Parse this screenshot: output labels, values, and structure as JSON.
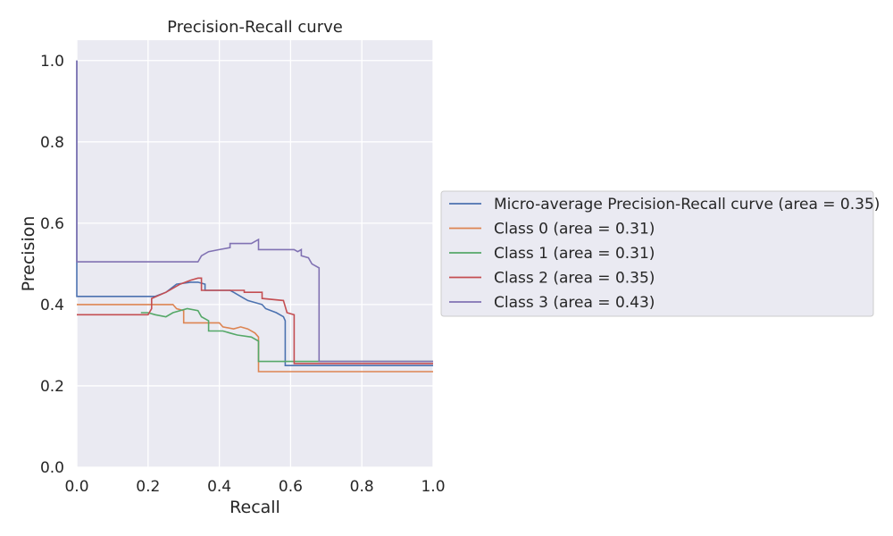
{
  "chart_data": {
    "type": "line",
    "title": "Precision-Recall curve",
    "xlabel": "Recall",
    "ylabel": "Precision",
    "xlim": [
      0.0,
      1.0
    ],
    "ylim": [
      0.0,
      1.05
    ],
    "x_ticks": [
      "0.0",
      "0.2",
      "0.4",
      "0.6",
      "0.8",
      "1.0"
    ],
    "y_ticks": [
      "0.0",
      "0.2",
      "0.4",
      "0.6",
      "0.8",
      "1.0"
    ],
    "grid": true,
    "legend_position": "outside-right",
    "series": [
      {
        "name": "Micro-average Precision-Recall curve (area = 0.35)",
        "color": "#4c72b0",
        "points": [
          [
            0.0,
            1.0
          ],
          [
            0.0,
            0.42
          ],
          [
            0.22,
            0.42
          ],
          [
            0.25,
            0.43
          ],
          [
            0.28,
            0.45
          ],
          [
            0.32,
            0.455
          ],
          [
            0.34,
            0.455
          ],
          [
            0.36,
            0.45
          ],
          [
            0.36,
            0.435
          ],
          [
            0.43,
            0.435
          ],
          [
            0.44,
            0.43
          ],
          [
            0.46,
            0.42
          ],
          [
            0.48,
            0.41
          ],
          [
            0.52,
            0.4
          ],
          [
            0.53,
            0.39
          ],
          [
            0.56,
            0.38
          ],
          [
            0.58,
            0.37
          ],
          [
            0.585,
            0.36
          ],
          [
            0.585,
            0.25
          ],
          [
            1.0,
            0.25
          ]
        ]
      },
      {
        "name": "Class 0 (area = 0.31)",
        "color": "#dd8452",
        "points": [
          [
            0.0,
            0.4
          ],
          [
            0.27,
            0.4
          ],
          [
            0.28,
            0.39
          ],
          [
            0.3,
            0.385
          ],
          [
            0.3,
            0.355
          ],
          [
            0.4,
            0.355
          ],
          [
            0.41,
            0.345
          ],
          [
            0.44,
            0.34
          ],
          [
            0.46,
            0.345
          ],
          [
            0.48,
            0.34
          ],
          [
            0.5,
            0.33
          ],
          [
            0.51,
            0.32
          ],
          [
            0.51,
            0.235
          ],
          [
            1.0,
            0.235
          ]
        ]
      },
      {
        "name": "Class 1 (area = 0.31)",
        "color": "#55a868",
        "points": [
          [
            0.18,
            0.38
          ],
          [
            0.2,
            0.38
          ],
          [
            0.22,
            0.375
          ],
          [
            0.25,
            0.37
          ],
          [
            0.27,
            0.38
          ],
          [
            0.31,
            0.39
          ],
          [
            0.34,
            0.385
          ],
          [
            0.35,
            0.37
          ],
          [
            0.37,
            0.36
          ],
          [
            0.37,
            0.335
          ],
          [
            0.41,
            0.335
          ],
          [
            0.43,
            0.33
          ],
          [
            0.45,
            0.325
          ],
          [
            0.49,
            0.32
          ],
          [
            0.51,
            0.31
          ],
          [
            0.51,
            0.26
          ],
          [
            1.0,
            0.26
          ]
        ]
      },
      {
        "name": "Class 2 (area = 0.35)",
        "color": "#c44e52",
        "points": [
          [
            0.0,
            0.375
          ],
          [
            0.2,
            0.375
          ],
          [
            0.21,
            0.39
          ],
          [
            0.21,
            0.415
          ],
          [
            0.25,
            0.43
          ],
          [
            0.29,
            0.45
          ],
          [
            0.32,
            0.46
          ],
          [
            0.34,
            0.465
          ],
          [
            0.35,
            0.465
          ],
          [
            0.35,
            0.435
          ],
          [
            0.47,
            0.435
          ],
          [
            0.47,
            0.43
          ],
          [
            0.52,
            0.43
          ],
          [
            0.52,
            0.415
          ],
          [
            0.58,
            0.41
          ],
          [
            0.59,
            0.38
          ],
          [
            0.61,
            0.375
          ],
          [
            0.61,
            0.255
          ],
          [
            1.0,
            0.255
          ]
        ]
      },
      {
        "name": "Class 3 (area = 0.43)",
        "color": "#8172b3",
        "points": [
          [
            0.0,
            1.0
          ],
          [
            0.0,
            0.505
          ],
          [
            0.34,
            0.505
          ],
          [
            0.35,
            0.52
          ],
          [
            0.37,
            0.53
          ],
          [
            0.4,
            0.535
          ],
          [
            0.43,
            0.54
          ],
          [
            0.43,
            0.55
          ],
          [
            0.49,
            0.55
          ],
          [
            0.5,
            0.555
          ],
          [
            0.51,
            0.56
          ],
          [
            0.51,
            0.535
          ],
          [
            0.61,
            0.535
          ],
          [
            0.62,
            0.53
          ],
          [
            0.63,
            0.535
          ],
          [
            0.63,
            0.52
          ],
          [
            0.65,
            0.515
          ],
          [
            0.66,
            0.5
          ],
          [
            0.68,
            0.49
          ],
          [
            0.68,
            0.26
          ],
          [
            1.0,
            0.26
          ]
        ]
      }
    ]
  }
}
